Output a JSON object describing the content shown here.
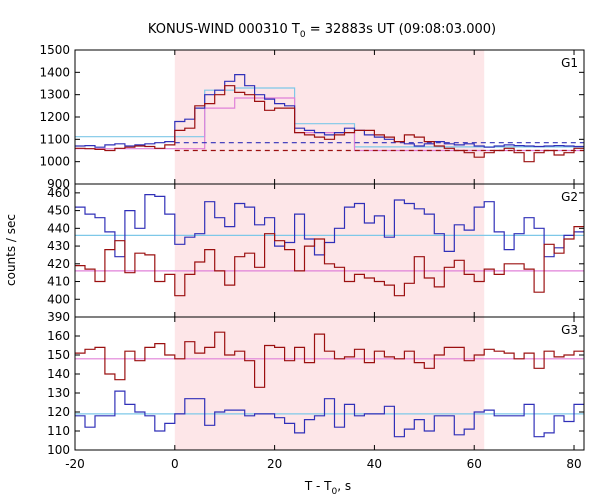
{
  "title": {
    "main": "KONUS-WIND 000310 T",
    "sub": "0",
    "rest": " = 32883s UT (09:08:03.000)"
  },
  "xlabel": {
    "main": "T - T",
    "sub": "0",
    "rest": ", s"
  },
  "ylabel": "counts / sec",
  "colors": {
    "blue": "#3030b8",
    "red": "#9b1010",
    "light_blue": "#7ec8e8",
    "pink": "#e080d8",
    "shade": "#fde6e8"
  },
  "chart_data": {
    "type": "line",
    "shade": {
      "x0": 0,
      "x1": 62
    },
    "xlim": [
      -20,
      82
    ],
    "x_ticks": [
      -20,
      0,
      20,
      40,
      60,
      80
    ],
    "bin_edges": [
      -20,
      -18,
      -16,
      -14,
      -12,
      -10,
      -8,
      -6,
      -4,
      -2,
      0,
      2,
      4,
      6,
      8,
      10,
      12,
      14,
      16,
      18,
      20,
      22,
      24,
      26,
      28,
      30,
      32,
      34,
      36,
      38,
      40,
      42,
      44,
      46,
      48,
      50,
      52,
      54,
      56,
      58,
      60,
      62,
      64,
      66,
      68,
      70,
      72,
      74,
      76,
      78,
      80,
      82
    ],
    "panels": [
      {
        "label": "G1",
        "ylim": [
          900,
          1500
        ],
        "y_ticks": [
          900,
          1000,
          1100,
          1200,
          1300,
          1400,
          1500
        ],
        "series": [
          {
            "color": "blue",
            "values": [
              1070,
              1072,
              1065,
              1075,
              1080,
              1070,
              1075,
              1080,
              1085,
              1090,
              1180,
              1190,
              1240,
              1300,
              1320,
              1360,
              1390,
              1340,
              1300,
              1280,
              1260,
              1250,
              1150,
              1140,
              1130,
              1120,
              1130,
              1150,
              1140,
              1120,
              1110,
              1100,
              1090,
              1080,
              1070,
              1080,
              1090,
              1080,
              1075,
              1080,
              1070,
              1065,
              1070,
              1075,
              1072,
              1070,
              1068,
              1070,
              1072,
              1070,
              1068
            ]
          },
          {
            "color": "red",
            "values": [
              1060,
              1058,
              1055,
              1050,
              1060,
              1065,
              1070,
              1068,
              1060,
              1075,
              1140,
              1150,
              1250,
              1260,
              1300,
              1340,
              1310,
              1300,
              1270,
              1230,
              1240,
              1240,
              1130,
              1120,
              1110,
              1100,
              1120,
              1130,
              1140,
              1140,
              1120,
              1110,
              1090,
              1120,
              1110,
              1090,
              1070,
              1060,
              1050,
              1040,
              1020,
              1040,
              1050,
              1060,
              1040,
              1000,
              1040,
              1050,
              1030,
              1040,
              1060
            ]
          }
        ],
        "models": [
          {
            "color": "light_blue",
            "style": "solid",
            "steps": [
              [
                -20,
                6,
                1112
              ],
              [
                6,
                12,
                1320
              ],
              [
                12,
                24,
                1330
              ],
              [
                24,
                36,
                1170
              ],
              [
                36,
                82,
                1066
              ]
            ]
          },
          {
            "color": "pink",
            "style": "solid",
            "steps": [
              [
                -20,
                6,
                1058
              ],
              [
                6,
                12,
                1240
              ],
              [
                12,
                24,
                1285
              ],
              [
                24,
                36,
                1130
              ],
              [
                36,
                82,
                1050
              ]
            ]
          },
          {
            "color": "blue",
            "style": "dashed",
            "steps": [
              [
                0,
                82,
                1085
              ]
            ]
          },
          {
            "color": "red",
            "style": "dashed",
            "steps": [
              [
                0,
                82,
                1050
              ]
            ]
          }
        ]
      },
      {
        "label": "G2",
        "ylim": [
          390,
          465
        ],
        "y_ticks": [
          390,
          400,
          410,
          420,
          430,
          440,
          450,
          460
        ],
        "series": [
          {
            "color": "blue",
            "values": [
              452,
              448,
              446,
              438,
              424,
              450,
              440,
              459,
              458,
              448,
              431,
              435,
              437,
              455,
              446,
              441,
              454,
              452,
              442,
              446,
              430,
              432,
              448,
              434,
              425,
              432,
              440,
              452,
              454,
              443,
              447,
              435,
              456,
              454,
              451,
              448,
              437,
              427,
              442,
              439,
              452,
              455,
              438,
              428,
              437,
              446,
              440,
              424,
              429,
              436,
              438
            ]
          },
          {
            "color": "red",
            "values": [
              419,
              417,
              410,
              428,
              433,
              415,
              426,
              425,
              410,
              414,
              402,
              414,
              421,
              428,
              416,
              408,
              424,
              426,
              418,
              437,
              433,
              428,
              416,
              430,
              434,
              420,
              418,
              410,
              414,
              412,
              410,
              408,
              402,
              409,
              424,
              412,
              407,
              418,
              422,
              414,
              410,
              417,
              414,
              420,
              420,
              417,
              404,
              431,
              426,
              434,
              441
            ]
          }
        ],
        "models": [
          {
            "color": "light_blue",
            "style": "solid",
            "steps": [
              [
                -20,
                82,
                436
              ]
            ]
          },
          {
            "color": "pink",
            "style": "solid",
            "steps": [
              [
                -20,
                82,
                416
              ]
            ]
          }
        ]
      },
      {
        "label": "G3",
        "ylim": [
          100,
          170
        ],
        "y_ticks": [
          100,
          110,
          120,
          130,
          140,
          150,
          160
        ],
        "series": [
          {
            "color": "red",
            "values": [
              151,
              153,
              154,
              140,
              137,
              152,
              147,
              154,
              156,
              150,
              148,
              157,
              151,
              154,
              162,
              150,
              152,
              147,
              133,
              155,
              154,
              147,
              154,
              146,
              161,
              152,
              148,
              149,
              153,
              146,
              152,
              149,
              148,
              152,
              146,
              143,
              150,
              154,
              154,
              147,
              150,
              153,
              152,
              151,
              148,
              151,
              143,
              152,
              149,
              150,
              152
            ]
          },
          {
            "color": "blue",
            "values": [
              118,
              112,
              118,
              118,
              131,
              124,
              120,
              118,
              110,
              114,
              119,
              127,
              127,
              113,
              120,
              121,
              121,
              118,
              119,
              119,
              117,
              114,
              109,
              116,
              118,
              127,
              112,
              124,
              118,
              119,
              119,
              123,
              107,
              111,
              116,
              110,
              118,
              118,
              108,
              111,
              120,
              121,
              118,
              118,
              118,
              124,
              107,
              109,
              118,
              115,
              124
            ]
          }
        ],
        "models": [
          {
            "color": "pink",
            "style": "solid",
            "steps": [
              [
                -20,
                82,
                148
              ]
            ]
          },
          {
            "color": "light_blue",
            "style": "solid",
            "steps": [
              [
                -20,
                82,
                119
              ]
            ]
          }
        ]
      }
    ]
  }
}
